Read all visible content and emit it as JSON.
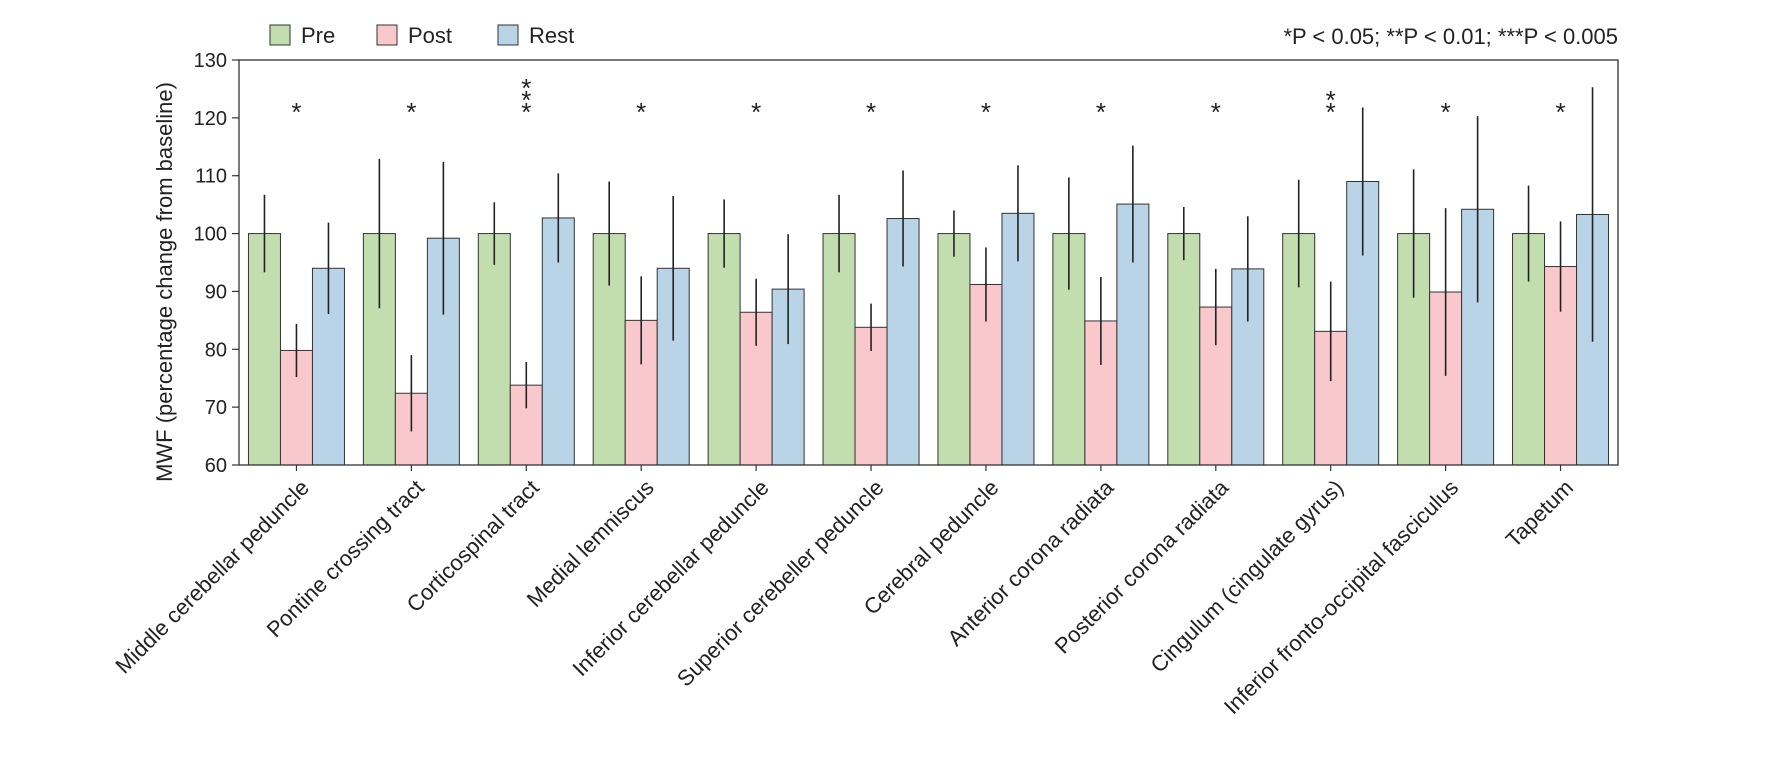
{
  "chart_data": {
    "type": "bar",
    "ylabel": "MWF (percentage change from baseline)",
    "ylim": [
      60,
      130
    ],
    "yticks": [
      60,
      70,
      80,
      90,
      100,
      110,
      120,
      130
    ],
    "significance_note": "*P < 0.05; **P < 0.01; ***P < 0.005",
    "legend_position": "top-left",
    "categories": [
      "Middle cerebellar peduncle",
      "Pontine crossing tract",
      "Corticospinal tract",
      "Medial lemniscus",
      "Inferior cerebellar peduncle",
      "Superior cerebeller peduncle",
      "Cerebral peduncle",
      "Anterior corona radiata",
      "Posterior corona radiata",
      "Cingulum (cingulate gyrus)",
      "Inferior fronto-occipital fasciculus",
      "Tapetum"
    ],
    "series": [
      {
        "name": "Pre",
        "color": "#c2deae",
        "values": [
          100,
          100,
          100,
          100,
          100,
          100,
          100,
          100,
          100,
          100,
          100,
          100
        ],
        "errors": [
          6.7,
          12.9,
          5.4,
          9.0,
          5.9,
          6.7,
          4.0,
          9.7,
          4.6,
          9.3,
          11.1,
          8.3
        ]
      },
      {
        "name": "Post",
        "color": "#f8c8cc",
        "values": [
          79.8,
          72.4,
          73.8,
          85.0,
          86.4,
          83.8,
          91.2,
          84.9,
          87.3,
          83.1,
          89.9,
          94.3
        ],
        "errors": [
          4.6,
          6.6,
          4.0,
          7.6,
          5.8,
          4.1,
          6.4,
          7.6,
          6.6,
          8.6,
          14.5,
          7.8
        ]
      },
      {
        "name": "Rest",
        "color": "#b8d4e6",
        "values": [
          94.0,
          99.2,
          102.7,
          94.0,
          90.4,
          102.6,
          103.5,
          105.1,
          93.9,
          109.0,
          104.2,
          103.3
        ],
        "errors": [
          7.9,
          13.2,
          7.7,
          12.5,
          9.5,
          8.3,
          8.3,
          10.1,
          9.1,
          12.8,
          16.1,
          22.0
        ]
      }
    ],
    "significance": [
      "*",
      "*",
      "***",
      "*",
      "*",
      "*",
      "*",
      "*",
      "*",
      "**",
      "*",
      "*"
    ]
  }
}
